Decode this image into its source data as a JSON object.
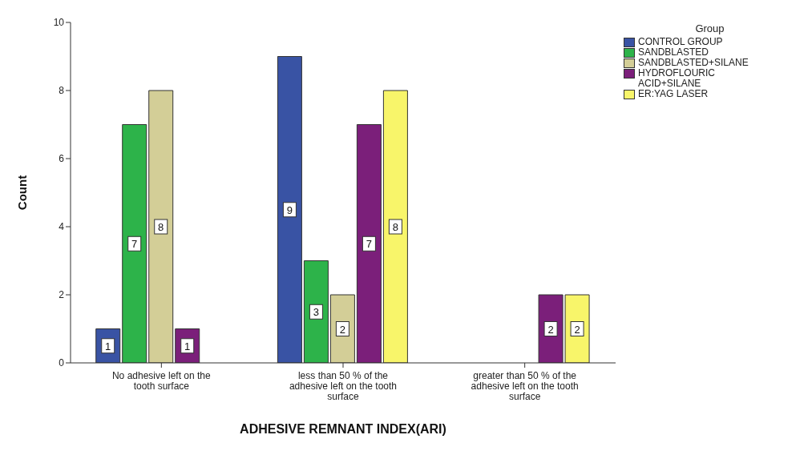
{
  "chart_data": {
    "type": "bar",
    "xlabel": "ADHESIVE REMNANT INDEX(ARI)",
    "ylabel": "Count",
    "legend_title": "Group",
    "categories": [
      "No adhesive left on the tooth surface",
      "less than 50 % of the adhesive left on the tooth surface",
      "greater than 50 % of the adhesive left on the tooth surface"
    ],
    "series": [
      {
        "name": "CONTROL GROUP",
        "color": "#3953a4",
        "values": [
          1,
          9,
          null
        ]
      },
      {
        "name": "SANDBLASTED",
        "color": "#2db34a",
        "values": [
          7,
          3,
          null
        ]
      },
      {
        "name": "SANDBLASTED+SILANE",
        "color": "#d3ce97",
        "values": [
          8,
          2,
          null
        ]
      },
      {
        "name": "HYDROFLOURIC ACID+SILANE",
        "color": "#7b1f7a",
        "values": [
          1,
          7,
          2
        ]
      },
      {
        "name": "ER:YAG LASER",
        "color": "#f8f56a",
        "values": [
          null,
          8,
          2
        ]
      }
    ],
    "ylim": [
      0,
      10
    ],
    "yticks": [
      0,
      2,
      4,
      6,
      8,
      10
    ],
    "grid": false,
    "legend": "top right",
    "data_labels": true
  }
}
